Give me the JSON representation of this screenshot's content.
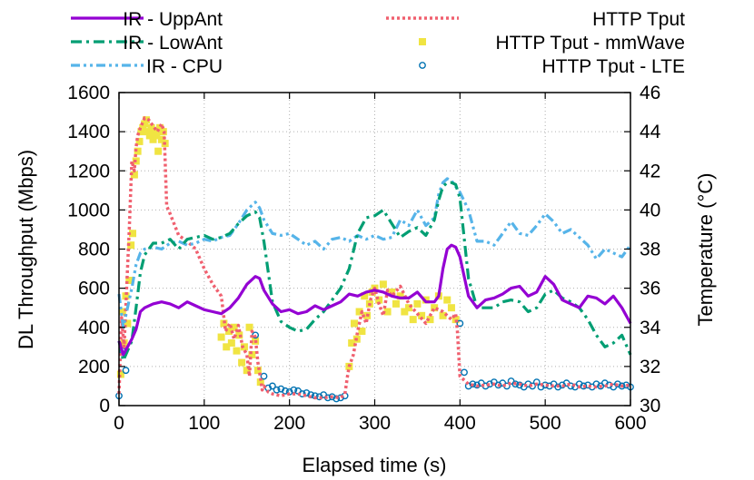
{
  "chart_data": {
    "type": "line",
    "xlabel": "Elapsed time (s)",
    "ylabel_left": "DL Throughput (Mbps)",
    "ylabel_right": "Temperature (°C)",
    "xlim": [
      0,
      600
    ],
    "ylim_left": [
      0,
      1600
    ],
    "ylim_right": [
      30,
      46
    ],
    "x_ticks": [
      0,
      100,
      200,
      300,
      400,
      500,
      600
    ],
    "y_left_ticks": [
      0,
      200,
      400,
      600,
      800,
      1000,
      1200,
      1400,
      1600
    ],
    "y_right_ticks": [
      30,
      32,
      34,
      36,
      38,
      40,
      42,
      44,
      46
    ],
    "grid": true,
    "legend_position": "top, two columns",
    "series": [
      {
        "name": "IR - UppAnt",
        "axis": "right",
        "color": "#9400d3",
        "style": "solid",
        "x": [
          0,
          5,
          10,
          15,
          20,
          25,
          30,
          40,
          50,
          60,
          70,
          80,
          90,
          100,
          110,
          120,
          130,
          140,
          150,
          160,
          165,
          170,
          180,
          190,
          200,
          210,
          220,
          230,
          240,
          250,
          260,
          270,
          280,
          290,
          300,
          310,
          320,
          330,
          340,
          350,
          360,
          370,
          375,
          380,
          385,
          390,
          395,
          400,
          410,
          420,
          430,
          440,
          450,
          460,
          470,
          480,
          490,
          500,
          510,
          520,
          530,
          540,
          550,
          560,
          570,
          580,
          590,
          600
        ],
        "values": [
          33.3,
          32.6,
          33.0,
          33.4,
          33.9,
          34.8,
          35.0,
          35.2,
          35.3,
          35.2,
          35.0,
          35.3,
          35.1,
          34.9,
          34.8,
          34.7,
          35.0,
          35.5,
          36.2,
          36.6,
          36.5,
          35.9,
          35.2,
          34.8,
          34.9,
          34.7,
          34.8,
          35.1,
          34.9,
          35.1,
          35.3,
          35.7,
          35.6,
          35.8,
          35.9,
          35.8,
          35.6,
          35.5,
          35.5,
          35.8,
          35.3,
          35.3,
          35.6,
          37.0,
          38.0,
          38.2,
          38.1,
          37.6,
          35.6,
          35.0,
          35.4,
          35.5,
          35.7,
          36.0,
          36.1,
          35.6,
          35.8,
          36.6,
          36.2,
          35.4,
          35.2,
          35.0,
          35.6,
          35.5,
          35.2,
          35.6,
          35.0,
          34.2
        ]
      },
      {
        "name": "IR - LowAnt",
        "axis": "right",
        "color": "#009e73",
        "style": "dash-dot",
        "x": [
          0,
          5,
          10,
          15,
          20,
          25,
          30,
          40,
          50,
          60,
          70,
          80,
          90,
          100,
          110,
          120,
          130,
          140,
          150,
          160,
          165,
          170,
          180,
          190,
          200,
          210,
          220,
          230,
          240,
          250,
          260,
          270,
          280,
          290,
          300,
          310,
          320,
          330,
          340,
          350,
          360,
          370,
          375,
          380,
          385,
          390,
          395,
          400,
          410,
          420,
          430,
          440,
          450,
          460,
          470,
          480,
          490,
          500,
          510,
          520,
          530,
          540,
          550,
          560,
          570,
          580,
          590,
          600
        ],
        "values": [
          33.3,
          32.3,
          32.8,
          33.3,
          35.0,
          36.8,
          37.7,
          38.3,
          38.3,
          38.5,
          38.0,
          38.5,
          38.6,
          38.7,
          38.5,
          38.6,
          38.8,
          39.3,
          39.7,
          39.9,
          39.6,
          38.4,
          35.3,
          34.3,
          34.0,
          33.8,
          33.9,
          34.4,
          34.8,
          35.4,
          36.0,
          37.0,
          38.8,
          39.6,
          39.7,
          40.0,
          39.3,
          38.6,
          38.9,
          39.1,
          38.7,
          39.5,
          40.5,
          41.2,
          41.4,
          41.4,
          41.3,
          40.6,
          36.5,
          35.0,
          35.0,
          35.0,
          35.3,
          35.4,
          35.3,
          34.8,
          35.0,
          35.7,
          35.9,
          35.5,
          35.3,
          35.0,
          34.4,
          33.6,
          33.0,
          33.2,
          33.6,
          32.6
        ]
      },
      {
        "name": "IR - CPU",
        "axis": "right",
        "color": "#56b4e9",
        "style": "dash-dot-dot",
        "x": [
          0,
          5,
          10,
          15,
          20,
          25,
          30,
          40,
          50,
          60,
          70,
          80,
          90,
          100,
          110,
          120,
          130,
          140,
          150,
          160,
          165,
          170,
          180,
          190,
          200,
          210,
          220,
          230,
          240,
          250,
          260,
          270,
          280,
          290,
          300,
          310,
          320,
          330,
          340,
          350,
          360,
          370,
          375,
          380,
          385,
          390,
          395,
          400,
          410,
          420,
          430,
          440,
          450,
          460,
          470,
          480,
          490,
          500,
          510,
          520,
          530,
          540,
          550,
          560,
          570,
          580,
          590,
          600
        ],
        "values": [
          35.7,
          34.0,
          35.0,
          36.0,
          37.2,
          37.8,
          38.0,
          38.1,
          38.0,
          38.3,
          38.4,
          38.2,
          38.3,
          38.5,
          38.4,
          38.6,
          38.7,
          39.3,
          40.0,
          40.4,
          40.1,
          39.5,
          38.8,
          38.7,
          38.8,
          38.5,
          38.2,
          38.4,
          38.0,
          38.5,
          38.6,
          38.4,
          38.7,
          38.5,
          38.7,
          38.5,
          38.6,
          39.5,
          39.2,
          40.0,
          39.2,
          39.6,
          40.8,
          41.4,
          41.6,
          41.5,
          41.2,
          40.9,
          40.0,
          38.4,
          38.4,
          38.2,
          38.8,
          39.4,
          38.8,
          38.7,
          39.2,
          39.8,
          39.4,
          38.8,
          39.0,
          38.6,
          38.2,
          37.5,
          38.0,
          37.8,
          37.6,
          38.2
        ]
      },
      {
        "name": "HTTP Tput",
        "axis": "left",
        "color": "#f0606f",
        "style": "dotted",
        "x": [
          0,
          3,
          6,
          9,
          12,
          15,
          18,
          20,
          22,
          25,
          28,
          30,
          35,
          40,
          45,
          50,
          53,
          56,
          60,
          70,
          80,
          90,
          100,
          110,
          120,
          125,
          130,
          135,
          140,
          145,
          150,
          153,
          156,
          160,
          163,
          166,
          168,
          170,
          175,
          180,
          190,
          200,
          210,
          220,
          230,
          240,
          250,
          260,
          265,
          268,
          270,
          275,
          280,
          285,
          290,
          295,
          300,
          305,
          310,
          315,
          320,
          330,
          340,
          350,
          360,
          370,
          380,
          390,
          395,
          397,
          400,
          410,
          420,
          430,
          440,
          450,
          460,
          470,
          480,
          490,
          500,
          510,
          520,
          530,
          540,
          550,
          560,
          570,
          580,
          590,
          600
        ],
        "values": [
          60,
          450,
          300,
          600,
          900,
          1250,
          1200,
          1320,
          1380,
          1420,
          1450,
          1470,
          1460,
          1430,
          1400,
          1440,
          1400,
          1020,
          980,
          870,
          840,
          800,
          700,
          620,
          560,
          380,
          420,
          340,
          410,
          300,
          260,
          150,
          380,
          350,
          220,
          140,
          80,
          100,
          70,
          60,
          50,
          60,
          60,
          50,
          40,
          40,
          45,
          40,
          60,
          150,
          200,
          260,
          380,
          480,
          420,
          540,
          600,
          520,
          460,
          590,
          560,
          610,
          520,
          470,
          420,
          500,
          480,
          440,
          470,
          380,
          150,
          110,
          100,
          105,
          110,
          100,
          115,
          110,
          100,
          110,
          105,
          100,
          100,
          110,
          95,
          100,
          95,
          100,
          110,
          100,
          105
        ]
      },
      {
        "name": "HTTP Tput - mmWave",
        "axis": "left",
        "color": "#f0e442",
        "style": "markers-square",
        "x": [
          2,
          4,
          6,
          8,
          10,
          12,
          14,
          16,
          18,
          20,
          22,
          24,
          26,
          28,
          30,
          32,
          34,
          36,
          38,
          40,
          42,
          44,
          46,
          48,
          50,
          52,
          54,
          120,
          123,
          126,
          129,
          132,
          135,
          138,
          141,
          144,
          147,
          150,
          153,
          156,
          160,
          163,
          166,
          270,
          273,
          276,
          279,
          282,
          285,
          288,
          291,
          294,
          297,
          300,
          305,
          310,
          315,
          320,
          325,
          330,
          335,
          340,
          345,
          350,
          355,
          360,
          365,
          370,
          375,
          380,
          385,
          390,
          395
        ],
        "values": [
          160,
          480,
          320,
          560,
          420,
          640,
          820,
          880,
          1180,
          1250,
          1300,
          1350,
          1400,
          1420,
          1440,
          1460,
          1400,
          1380,
          1420,
          1360,
          1400,
          1380,
          1300,
          1420,
          1360,
          1400,
          1340,
          350,
          420,
          300,
          380,
          320,
          400,
          280,
          360,
          220,
          300,
          180,
          400,
          260,
          330,
          180,
          120,
          200,
          320,
          420,
          340,
          480,
          380,
          560,
          460,
          520,
          580,
          600,
          540,
          620,
          480,
          580,
          520,
          560,
          480,
          500,
          440,
          520,
          460,
          540,
          440,
          500,
          560,
          460,
          540,
          500,
          440
        ]
      },
      {
        "name": "HTTP Tput - LTE",
        "axis": "left",
        "color": "#0072b2",
        "style": "markers-circle",
        "x": [
          0,
          4,
          8,
          160,
          170,
          175,
          180,
          185,
          190,
          195,
          200,
          205,
          210,
          215,
          220,
          225,
          230,
          235,
          240,
          245,
          250,
          255,
          260,
          265,
          400,
          405,
          410,
          415,
          420,
          425,
          430,
          435,
          440,
          445,
          450,
          455,
          460,
          465,
          470,
          475,
          480,
          485,
          490,
          495,
          500,
          505,
          510,
          515,
          520,
          525,
          530,
          535,
          540,
          545,
          550,
          555,
          560,
          565,
          570,
          575,
          580,
          585,
          590,
          595,
          600
        ],
        "values": [
          50,
          280,
          180,
          360,
          150,
          90,
          100,
          80,
          85,
          75,
          70,
          80,
          75,
          60,
          65,
          55,
          50,
          45,
          55,
          40,
          45,
          35,
          40,
          50,
          420,
          170,
          100,
          110,
          105,
          115,
          100,
          110,
          120,
          105,
          115,
          100,
          125,
          110,
          105,
          95,
          110,
          100,
          120,
          95,
          105,
          100,
          110,
          95,
          105,
          115,
          100,
          95,
          110,
          100,
          105,
          95,
          110,
          100,
          115,
          105,
          95,
          110,
          100,
          105,
          95
        ]
      }
    ]
  }
}
